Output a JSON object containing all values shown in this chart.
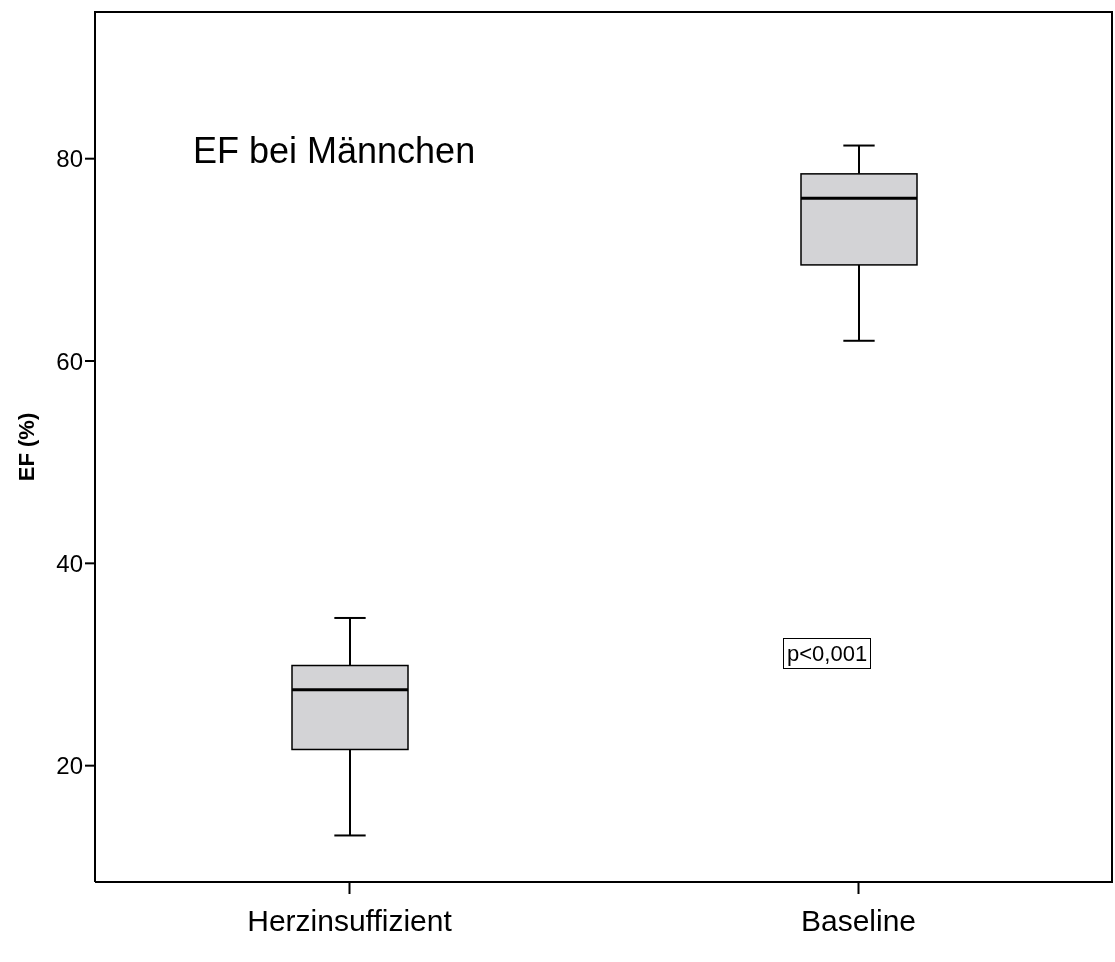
{
  "chart_data": {
    "type": "box",
    "title": "EF bei Männchen",
    "ylabel": "EF (%)",
    "categories": [
      "Herzinsuffizient",
      "Baseline"
    ],
    "boxes": [
      {
        "low": 13.1,
        "q1": 21.6,
        "median": 27.5,
        "q3": 29.9,
        "high": 34.6
      },
      {
        "low": 62.0,
        "q1": 69.5,
        "median": 76.1,
        "q3": 78.5,
        "high": 81.3
      }
    ],
    "color": "#d3d3d6",
    "ylim": [
      8.5,
      94.5
    ],
    "yticks": [
      20,
      40,
      60,
      80
    ],
    "annotations": [
      "p<0,001"
    ]
  }
}
